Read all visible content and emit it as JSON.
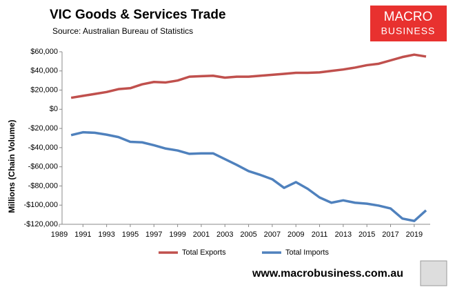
{
  "chart_data": {
    "type": "line",
    "title": "VIC Goods & Services Trade",
    "subtitle": "Source:  Australian Bureau of Statistics",
    "y_label": "Millions (Chain Volume)",
    "x": [
      1990,
      1991,
      1992,
      1993,
      1994,
      1995,
      1996,
      1997,
      1998,
      1999,
      2000,
      2001,
      2002,
      2003,
      2004,
      2005,
      2006,
      2007,
      2008,
      2009,
      2010,
      2011,
      2012,
      2013,
      2014,
      2015,
      2016,
      2017,
      2018,
      2019,
      2020
    ],
    "series": [
      {
        "name": "Total Exports",
        "color": "#c0504d",
        "values": [
          12000,
          14000,
          16000,
          18000,
          21000,
          22000,
          26000,
          28500,
          28000,
          30000,
          34000,
          34500,
          35000,
          33000,
          34000,
          34000,
          35000,
          36000,
          37000,
          38000,
          38000,
          38500,
          40000,
          41500,
          43500,
          46000,
          47500,
          51000,
          54500,
          57000,
          55000
        ]
      },
      {
        "name": "Total Imports",
        "color": "#4f81bd",
        "values": [
          -27000,
          -24000,
          -24500,
          -26500,
          -29000,
          -34000,
          -34500,
          -37500,
          -41000,
          -43000,
          -46500,
          -46000,
          -46000,
          -52000,
          -58000,
          -64500,
          -68500,
          -73000,
          -82000,
          -76000,
          -83000,
          -92000,
          -97500,
          -95000,
          -97500,
          -98500,
          -100500,
          -103500,
          -114000,
          -116500,
          -105500
        ]
      }
    ],
    "xlim": [
      1989,
      2020
    ],
    "xticks": [
      1989,
      1991,
      1993,
      1995,
      1997,
      1999,
      2001,
      2003,
      2005,
      2007,
      2009,
      2011,
      2013,
      2015,
      2017,
      2019
    ],
    "ylim": [
      -120000,
      60000
    ],
    "yticks": [
      {
        "value": -120000,
        "label": "-$120,000"
      },
      {
        "value": -100000,
        "label": "-$100,000"
      },
      {
        "value": -80000,
        "label": "-$80,000"
      },
      {
        "value": -60000,
        "label": "-$60,000"
      },
      {
        "value": -40000,
        "label": "-$40,000"
      },
      {
        "value": -20000,
        "label": "-$20,000"
      },
      {
        "value": 0,
        "label": "$0"
      },
      {
        "value": 20000,
        "label": "$20,000"
      },
      {
        "value": 40000,
        "label": "$40,000"
      },
      {
        "value": 60000,
        "label": "$60,000"
      }
    ],
    "grid": false,
    "legend": "bottom"
  },
  "logo": {
    "line1": "MACRO",
    "line2": "BUSINESS"
  },
  "website": "www.macrobusiness.com.au"
}
